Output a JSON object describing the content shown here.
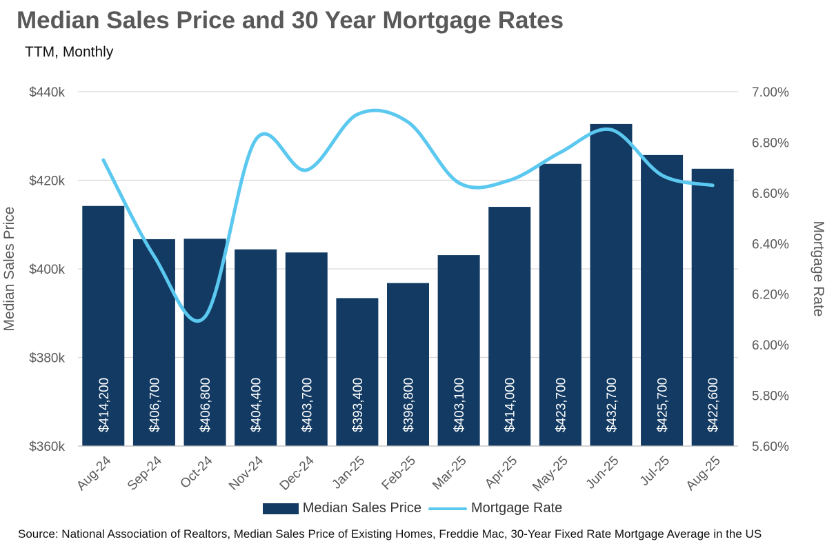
{
  "chart_data": {
    "type": "bar",
    "title": "Median Sales Price and 30 Year Mortgage Rates",
    "subtitle": "TTM, Monthly",
    "categories": [
      "Aug-24",
      "Sep-24",
      "Oct-24",
      "Nov-24",
      "Dec-24",
      "Jan-25",
      "Feb-25",
      "Mar-25",
      "Apr-25",
      "May-25",
      "Jun-25",
      "Jul-25",
      "Aug-25"
    ],
    "series": [
      {
        "name": "Median Sales Price",
        "type": "bar",
        "axis": "left",
        "color": "#123a63",
        "values": [
          414200,
          406700,
          406800,
          404400,
          403700,
          393400,
          396800,
          403100,
          414000,
          423700,
          432700,
          425700,
          422600
        ],
        "labels": [
          "$414,200",
          "$406,700",
          "$406,800",
          "$404,400",
          "$403,700",
          "$393,400",
          "$396,800",
          "$403,100",
          "$414,000",
          "$423,700",
          "$432,700",
          "$425,700",
          "$422,600"
        ]
      },
      {
        "name": "Mortgage Rate",
        "type": "line",
        "axis": "right",
        "color": "#5bc8f0",
        "values": [
          6.73,
          6.35,
          6.11,
          6.81,
          6.69,
          6.91,
          6.88,
          6.64,
          6.65,
          6.76,
          6.85,
          6.67,
          6.63
        ]
      }
    ],
    "ylabel": "Median Sales Price",
    "y2label": "Mortgage Rate",
    "ylim": [
      360000,
      440000
    ],
    "y2lim": [
      5.6,
      7.0
    ],
    "yticks": [
      "$360k",
      "$380k",
      "$400k",
      "$420k",
      "$440k"
    ],
    "y2ticks": [
      "5.60%",
      "5.80%",
      "6.00%",
      "6.20%",
      "6.40%",
      "6.60%",
      "6.80%",
      "7.00%"
    ],
    "grid": true,
    "legend": "bottom"
  },
  "source": "Source: National Association of Realtors, Median Sales Price of Existing Homes, Freddie Mac, 30-Year Fixed Rate Mortgage Average in the US"
}
